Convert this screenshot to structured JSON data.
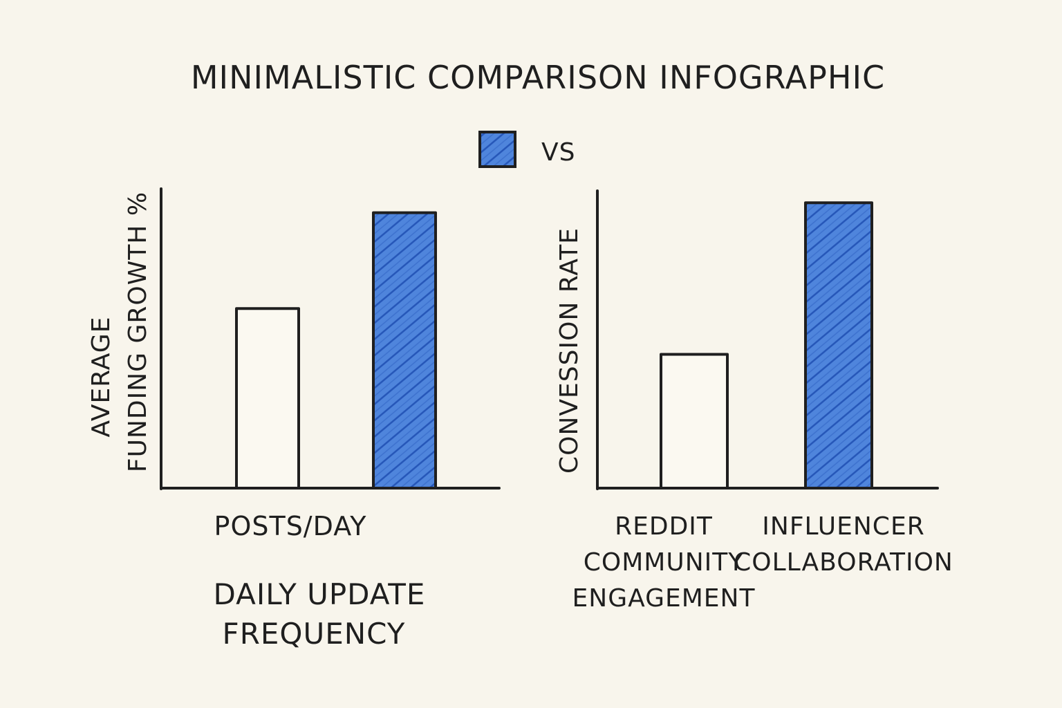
{
  "page_title": "MINIMALISTIC COMPARISON INFOGRAPHIC",
  "legend": {
    "label": "VS"
  },
  "colors": {
    "background": "#f8f5ec",
    "ink": "#1f1f1f",
    "accent_fill": "#4f85dc",
    "accent_hatch": "#2556b8",
    "plain_fill": "#fbf9f1"
  },
  "chart_data": [
    {
      "type": "bar",
      "title": "",
      "ylabel_lines": [
        "AVERAGE",
        "FUNDING GROWTH %"
      ],
      "xlabel": "POSTS/DAY",
      "caption_lines": [
        "DAILY UPDATE",
        "FREQUENCY"
      ],
      "categories": [
        "",
        ""
      ],
      "category_lines": [
        [],
        []
      ],
      "values": [
        60,
        92
      ],
      "ylim": [
        0,
        100
      ],
      "styles": [
        "plain",
        "accent"
      ],
      "grid": false
    },
    {
      "type": "bar",
      "title": "",
      "ylabel_lines": [
        "CONVESSION RATE"
      ],
      "xlabel": "",
      "caption_lines": [],
      "categories": [
        "REDDIT COMMUNITY ENGAGEMENT",
        "INFLUENCER COLLABORATION"
      ],
      "category_lines": [
        [
          "REDDIT",
          "COMMUNITY",
          "ENGAGEMENT"
        ],
        [
          "INFLUENCER",
          "COLLABORATION"
        ]
      ],
      "values": [
        45,
        96
      ],
      "ylim": [
        0,
        100
      ],
      "styles": [
        "plain",
        "accent"
      ],
      "grid": false
    }
  ]
}
